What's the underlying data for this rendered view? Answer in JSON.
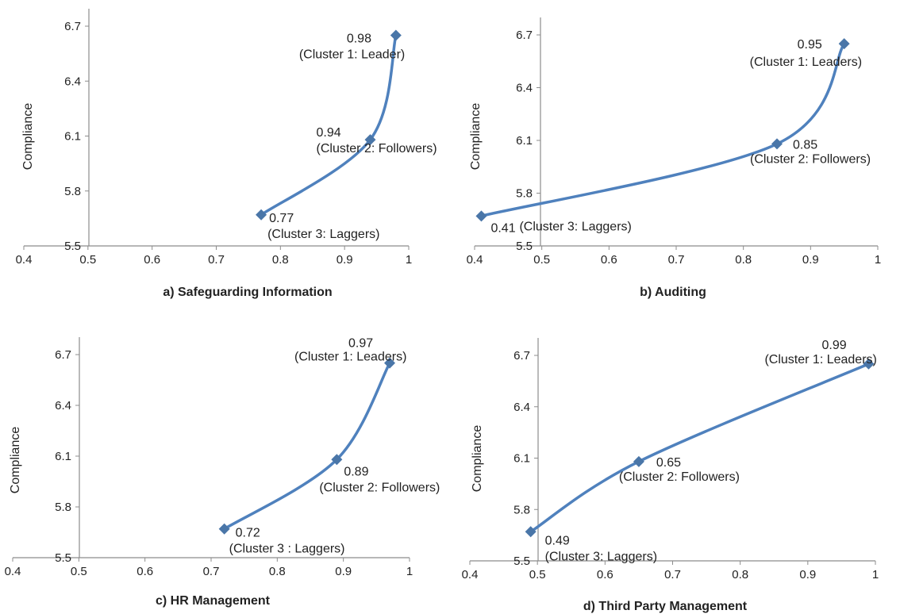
{
  "chart_data": [
    {
      "type": "line",
      "title": "a) Safeguarding Information",
      "ylabel": "Compliance",
      "xlim": [
        0.4,
        1
      ],
      "ylim": [
        5.5,
        6.7
      ],
      "xticks": [
        "0.4",
        "0.5",
        "0.6",
        "0.7",
        "0.8",
        "0.9",
        "1"
      ],
      "yticks": [
        "5.5",
        "5.8",
        "6.1",
        "6.4",
        "6.7"
      ],
      "points": [
        {
          "x": 0.77,
          "y": 5.67,
          "value_label": "0.77",
          "cluster_label": "(Cluster 3: Laggers)"
        },
        {
          "x": 0.94,
          "y": 6.08,
          "value_label": "0.94",
          "cluster_label": "(Cluster 2: Followers)"
        },
        {
          "x": 0.98,
          "y": 6.65,
          "value_label": "0.98",
          "cluster_label": "(Cluster 1: Leader)"
        }
      ]
    },
    {
      "type": "line",
      "title": "b) Auditing",
      "ylabel": "Compliance",
      "xlim": [
        0.4,
        1
      ],
      "ylim": [
        5.5,
        6.7
      ],
      "xticks": [
        "0.4",
        "0.5",
        "0.6",
        "0.7",
        "0.8",
        "0.9",
        "1"
      ],
      "yticks": [
        "5.5",
        "5.8",
        "6.1",
        "6.4",
        "6.7"
      ],
      "points": [
        {
          "x": 0.41,
          "y": 5.67,
          "value_label": "0.41",
          "cluster_label": "(Cluster 3: Laggers)"
        },
        {
          "x": 0.85,
          "y": 6.08,
          "value_label": "0.85",
          "cluster_label": "(Cluster 2: Followers)"
        },
        {
          "x": 0.95,
          "y": 6.65,
          "value_label": "0.95",
          "cluster_label": "(Cluster 1: Leaders)"
        }
      ]
    },
    {
      "type": "line",
      "title": "c) HR Management",
      "ylabel": "Compliance",
      "xlim": [
        0.4,
        1
      ],
      "ylim": [
        5.5,
        6.7
      ],
      "xticks": [
        "0.4",
        "0.5",
        "0.6",
        "0.7",
        "0.8",
        "0.9",
        "1"
      ],
      "yticks": [
        "5.5",
        "5.8",
        "6.1",
        "6.4",
        "6.7"
      ],
      "points": [
        {
          "x": 0.72,
          "y": 5.67,
          "value_label": "0.72",
          "cluster_label": "(Cluster 3 : Laggers)"
        },
        {
          "x": 0.89,
          "y": 6.08,
          "value_label": "0.89",
          "cluster_label": "(Cluster 2: Followers)"
        },
        {
          "x": 0.97,
          "y": 6.65,
          "value_label": "0.97",
          "cluster_label": "(Cluster 1: Leaders)"
        }
      ]
    },
    {
      "type": "line",
      "title": "d) Third Party Management",
      "ylabel": "Compliance",
      "xlim": [
        0.4,
        1
      ],
      "ylim": [
        5.5,
        6.7
      ],
      "xticks": [
        "0.4",
        "0.5",
        "0.6",
        "0.7",
        "0.8",
        "0.9",
        "1"
      ],
      "yticks": [
        "5.5",
        "5.8",
        "6.1",
        "6.4",
        "6.7"
      ],
      "points": [
        {
          "x": 0.49,
          "y": 5.67,
          "value_label": "0.49",
          "cluster_label": "(Cluster 3: Laggers)"
        },
        {
          "x": 0.65,
          "y": 6.08,
          "value_label": "0.65",
          "cluster_label": "(Cluster 2: Followers)"
        },
        {
          "x": 0.99,
          "y": 6.65,
          "value_label": "0.99",
          "cluster_label": "(Cluster 1: Leaders)"
        }
      ]
    }
  ],
  "colors": {
    "series": "#4f81bd",
    "marker": "#4a76a8",
    "axis": "#8c8c8c",
    "text": "#222222"
  }
}
